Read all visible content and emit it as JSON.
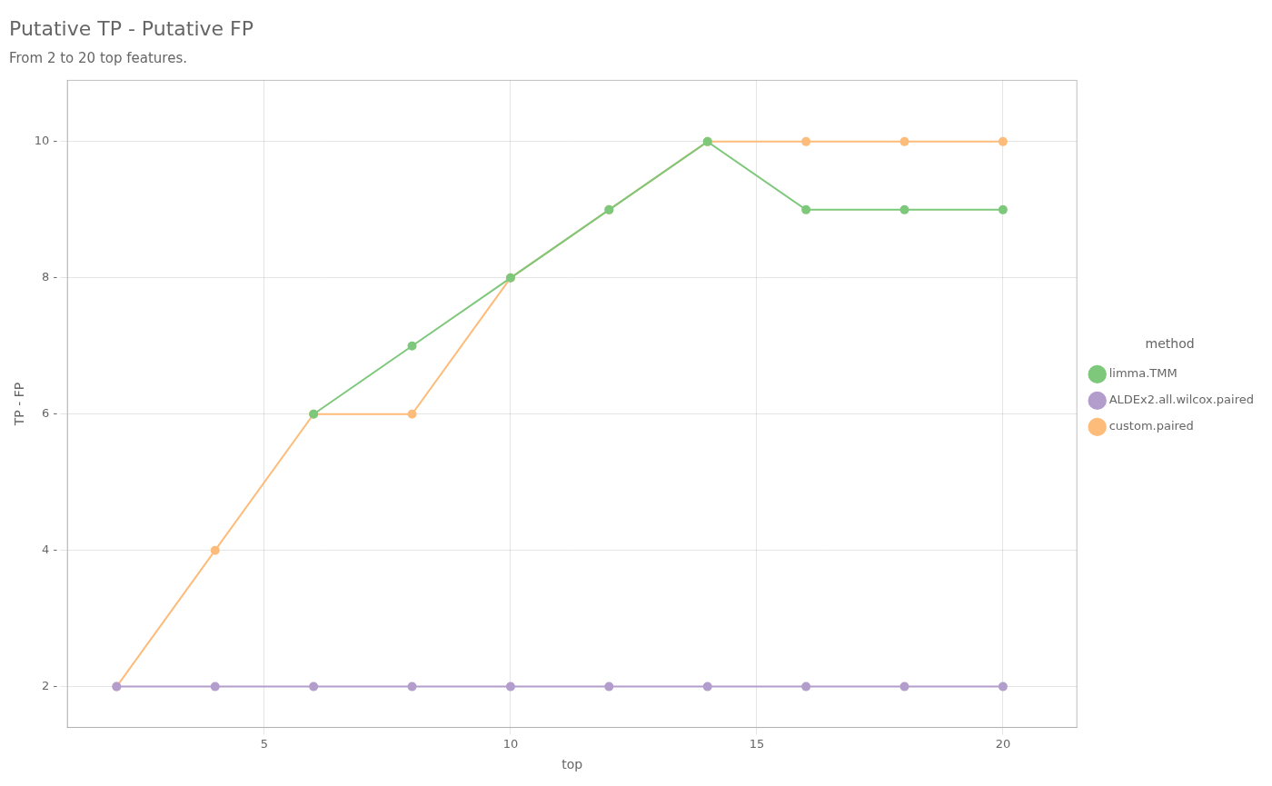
{
  "chart_data": {
    "type": "line",
    "title": "Putative TP - Putative FP",
    "subtitle": "From 2 to 20 top features.",
    "x_label": "top",
    "y_label": "TP - FP",
    "legend_title": "method",
    "x": [
      2,
      4,
      6,
      8,
      10,
      12,
      14,
      16,
      18,
      20
    ],
    "series": [
      {
        "name": "limma.TMM",
        "color": "#7DC87A",
        "values": [
          null,
          null,
          6,
          7,
          8,
          9,
          10,
          9,
          9,
          9
        ]
      },
      {
        "name": "ALDEx2.all.wilcox.paired",
        "color": "#B39DCC",
        "values": [
          2,
          2,
          2,
          2,
          2,
          2,
          2,
          2,
          2,
          2
        ]
      },
      {
        "name": "custom.paired",
        "color": "#FDBC7A",
        "values": [
          2,
          4,
          6,
          6,
          8,
          9,
          10,
          10,
          10,
          10
        ]
      }
    ],
    "xlim": [
      1.0,
      21.5
    ],
    "xticks": [
      5,
      10,
      15,
      20
    ],
    "ylim": [
      1.4,
      10.9
    ],
    "yticks": [
      {
        "value": 2,
        "label": "2 -"
      },
      {
        "value": 4,
        "label": "4 -"
      },
      {
        "value": 6,
        "label": "6 -"
      },
      {
        "value": 8,
        "label": "8 -"
      },
      {
        "value": 10,
        "label": "10 -"
      }
    ],
    "grid": true,
    "legend": "right",
    "marker": "circle"
  }
}
